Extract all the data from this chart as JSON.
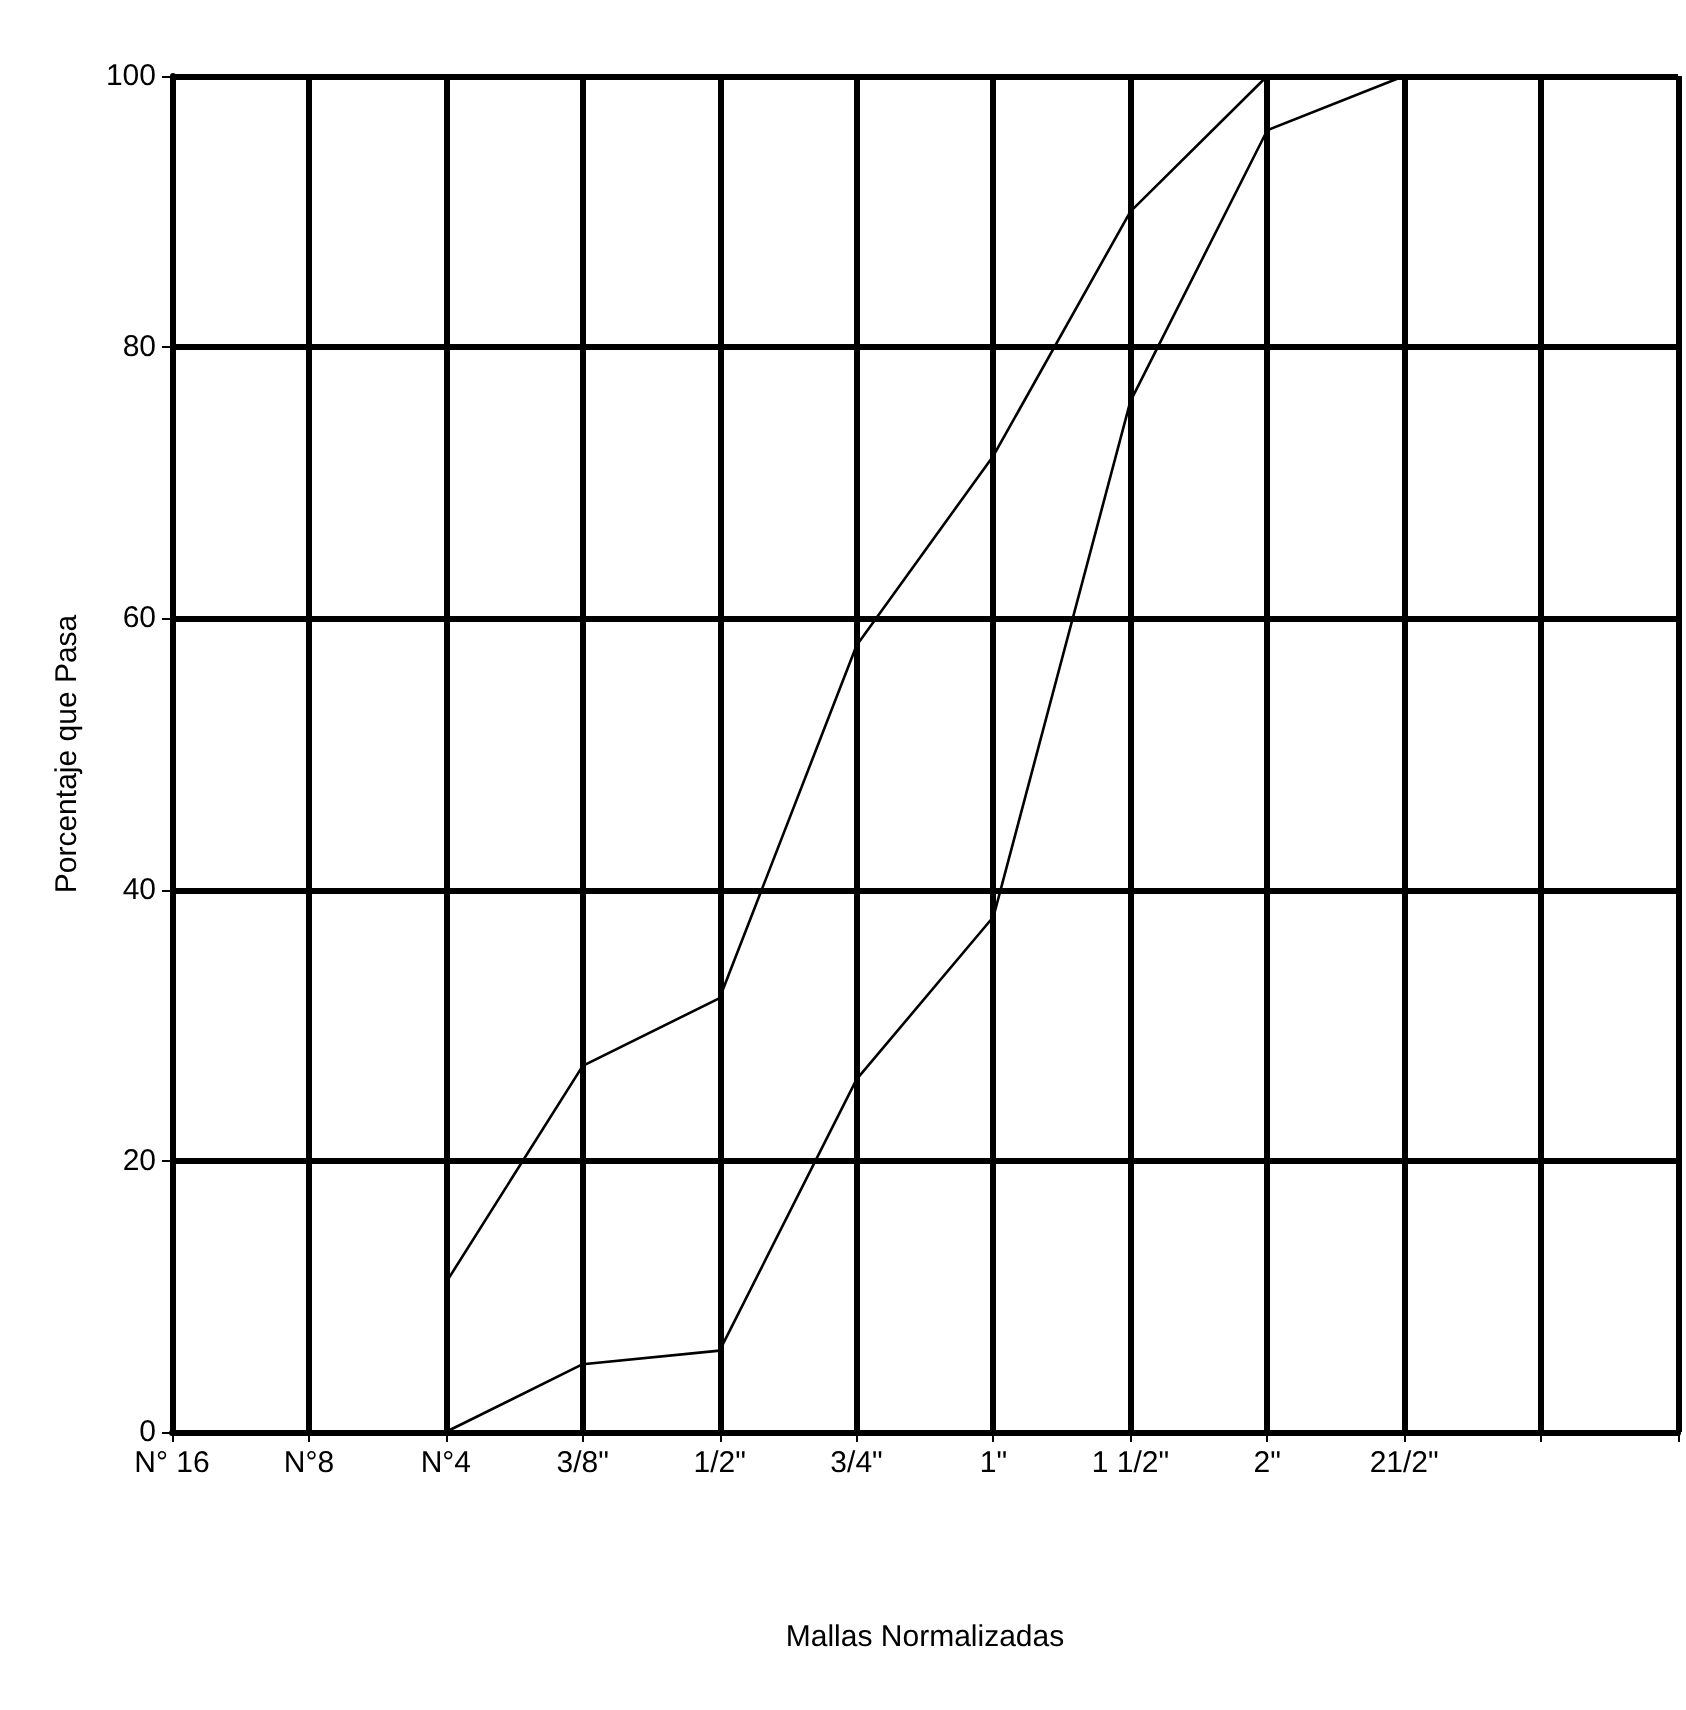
{
  "chart_data": {
    "type": "line",
    "xlabel": "Mallas Normalizadas",
    "ylabel": "Porcentaje que Pasa",
    "categories": [
      "N° 16",
      "N°8",
      "N°4",
      "3/8\"",
      "1/2\"",
      "3/4\"",
      "1\"",
      "1 1/2\"",
      "2\"",
      "21/2\"",
      null,
      null
    ],
    "ylim": [
      0,
      100
    ],
    "yticks": [
      0,
      20,
      40,
      60,
      80,
      100
    ],
    "grid": true,
    "marker": "none",
    "line_style": "solid",
    "series": [
      {
        "color": "#000000",
        "values": [
          null,
          null,
          11,
          27,
          32,
          58,
          72,
          90,
          100,
          null,
          null,
          null
        ]
      },
      {
        "color": "#000000",
        "values": [
          null,
          null,
          0,
          5,
          6,
          26,
          38,
          76,
          96,
          100,
          null,
          null
        ]
      }
    ]
  }
}
